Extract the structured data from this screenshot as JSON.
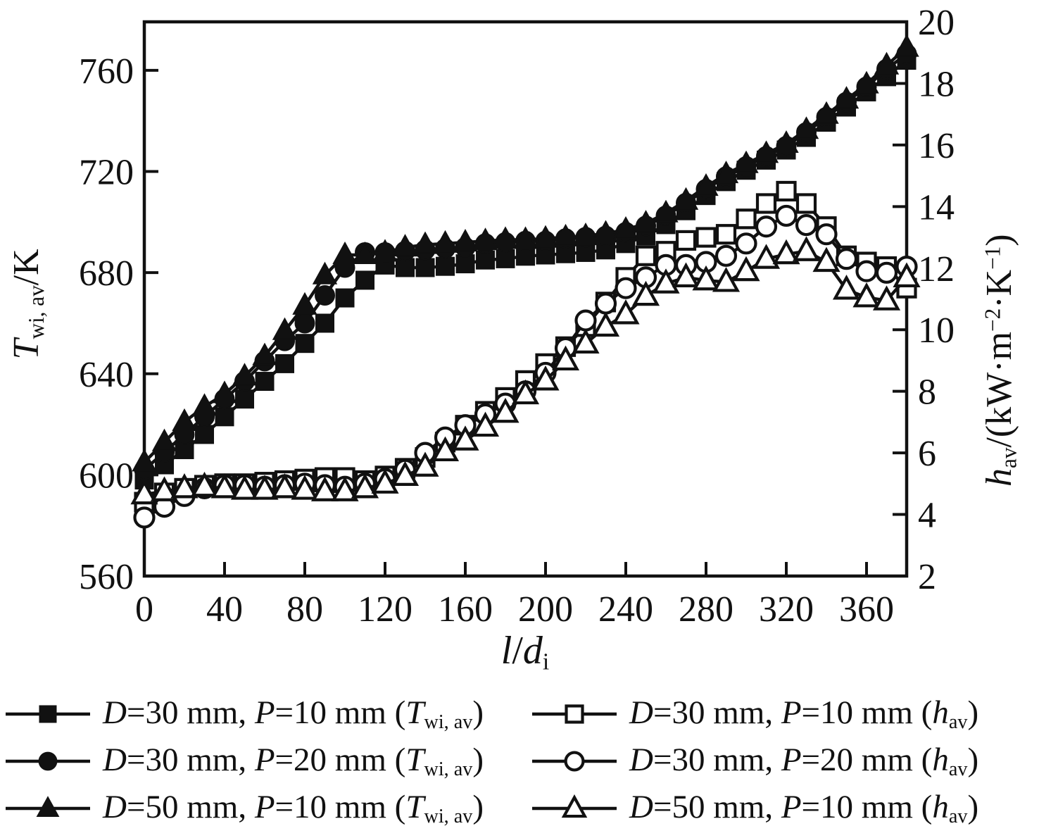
{
  "figure": {
    "background": "#ffffff",
    "foreground": "#111111"
  },
  "chart_data": {
    "type": "line",
    "title": "",
    "grid": "off",
    "legend_position": "bottom-two-columns",
    "x_axis": {
      "label_parts": [
        {
          "t": "l",
          "i": 1
        },
        {
          "t": "/"
        },
        {
          "t": "d",
          "i": 1
        },
        {
          "t": "i",
          "sub": 1
        }
      ],
      "ticks": [
        0,
        40,
        80,
        120,
        160,
        200,
        240,
        280,
        320,
        360
      ],
      "range": [
        0,
        380
      ]
    },
    "left_axis": {
      "label_parts": [
        {
          "t": "T",
          "i": 1
        },
        {
          "t": "wi, av",
          "sub": 1
        },
        {
          "t": "/K"
        }
      ],
      "ticks": [
        560,
        600,
        640,
        680,
        720,
        760
      ],
      "range": [
        560,
        779.2
      ]
    },
    "right_axis": {
      "label_parts": [
        {
          "t": "h",
          "i": 1
        },
        {
          "t": "av",
          "sub": 1
        },
        {
          "t": "/(kW·m"
        },
        {
          "t": "−2",
          "sup": 1
        },
        {
          "t": "·K"
        },
        {
          "t": "−1",
          "sup": 1
        },
        {
          "t": ")"
        }
      ],
      "ticks": [
        2,
        4,
        6,
        8,
        10,
        12,
        14,
        16,
        18,
        20
      ],
      "range": [
        2,
        20
      ]
    },
    "x": [
      0,
      10,
      20,
      30,
      40,
      50,
      60,
      70,
      80,
      90,
      100,
      110,
      120,
      130,
      140,
      150,
      160,
      170,
      180,
      190,
      200,
      210,
      220,
      230,
      240,
      250,
      260,
      270,
      280,
      290,
      300,
      310,
      320,
      330,
      340,
      350,
      360,
      370,
      380
    ],
    "series": [
      {
        "id": "T-D30-P10",
        "axis": "left",
        "marker": "square",
        "fill": "filled",
        "legend_parts": [
          {
            "t": "D",
            "i": 1
          },
          {
            "t": "=30 mm, "
          },
          {
            "t": "P",
            "i": 1
          },
          {
            "t": "=10 mm ("
          },
          {
            "t": "T",
            "i": 1
          },
          {
            "t": "wi, av",
            "sub": 1
          },
          {
            "t": ")"
          }
        ],
        "values": [
          598,
          604,
          610,
          616,
          623,
          630,
          637,
          644,
          652,
          660,
          670,
          677,
          683,
          682,
          682,
          682.5,
          683.5,
          685,
          685.5,
          686.5,
          687,
          687.5,
          688,
          689,
          691.5,
          694.5,
          699,
          704.5,
          710.5,
          716,
          720.5,
          724.5,
          728.5,
          733.5,
          739.5,
          745.5,
          751.5,
          757.5,
          764
        ]
      },
      {
        "id": "T-D30-P20",
        "axis": "left",
        "marker": "circle",
        "fill": "filled",
        "legend_parts": [
          {
            "t": "D",
            "i": 1
          },
          {
            "t": "=30 mm, "
          },
          {
            "t": "P",
            "i": 1
          },
          {
            "t": "=20 mm ("
          },
          {
            "t": "T",
            "i": 1
          },
          {
            "t": "wi, av",
            "sub": 1
          },
          {
            "t": ")"
          }
        ],
        "values": [
          602,
          609,
          616,
          623,
          630,
          637,
          645,
          653,
          660,
          671,
          682,
          688,
          688,
          688.5,
          689,
          689.5,
          690,
          691.5,
          692,
          692.5,
          692.5,
          693.5,
          694,
          694.5,
          696,
          698.5,
          702.5,
          707.5,
          713,
          718,
          722,
          726,
          730,
          735.5,
          741.5,
          747.5,
          753.5,
          760.5,
          766.5
        ]
      },
      {
        "id": "T-D50-P10",
        "axis": "left",
        "marker": "triangle",
        "fill": "filled",
        "legend_parts": [
          {
            "t": "D",
            "i": 1
          },
          {
            "t": "=50 mm, "
          },
          {
            "t": "P",
            "i": 1
          },
          {
            "t": "=10 mm ("
          },
          {
            "t": "T",
            "i": 1
          },
          {
            "t": "wi, av",
            "sub": 1
          },
          {
            "t": ")"
          }
        ],
        "values": [
          605,
          613,
          621,
          627,
          632,
          639,
          647,
          657,
          667,
          679,
          687,
          687,
          688,
          690,
          691,
          691.5,
          692,
          692.5,
          693,
          693,
          693.5,
          694,
          694.5,
          695.5,
          697,
          699.5,
          703.5,
          708.5,
          714,
          719,
          723,
          727,
          731,
          736.5,
          742.5,
          748.5,
          754.5,
          762,
          769
        ]
      },
      {
        "id": "h-D30-P10",
        "axis": "right",
        "marker": "square",
        "fill": "open",
        "legend_parts": [
          {
            "t": "D",
            "i": 1
          },
          {
            "t": "=30 mm, "
          },
          {
            "t": "P",
            "i": 1
          },
          {
            "t": "=10 mm ("
          },
          {
            "t": "h",
            "i": 1
          },
          {
            "t": "av",
            "sub": 1
          },
          {
            "t": ")"
          }
        ],
        "values": [
          4.4,
          4.7,
          4.85,
          4.95,
          5.0,
          5.0,
          5.05,
          5.1,
          5.15,
          5.2,
          5.2,
          5.1,
          5.25,
          5.5,
          5.85,
          6.35,
          6.9,
          7.35,
          7.8,
          8.35,
          8.9,
          9.45,
          10.1,
          10.9,
          11.7,
          12.4,
          12.55,
          12.9,
          13.0,
          13.1,
          13.6,
          14.1,
          14.5,
          14.1,
          13.35,
          12.4,
          12.2,
          12.05,
          11.35
        ]
      },
      {
        "id": "h-D30-P20",
        "axis": "right",
        "marker": "circle",
        "fill": "open",
        "legend_parts": [
          {
            "t": "D",
            "i": 1
          },
          {
            "t": "=30 mm, "
          },
          {
            "t": "P",
            "i": 1
          },
          {
            "t": "=20 mm ("
          },
          {
            "t": "h",
            "i": 1
          },
          {
            "t": "av",
            "sub": 1
          },
          {
            "t": ")"
          }
        ],
        "values": [
          3.9,
          4.25,
          4.6,
          4.85,
          4.95,
          4.95,
          4.9,
          4.95,
          5.0,
          4.95,
          4.9,
          5.0,
          5.15,
          5.45,
          6.0,
          6.5,
          6.9,
          7.25,
          7.6,
          8.0,
          8.6,
          9.4,
          10.3,
          10.85,
          11.35,
          11.7,
          12.1,
          12.1,
          12.2,
          12.4,
          12.8,
          13.35,
          13.7,
          13.4,
          13.1,
          12.3,
          11.9,
          11.85,
          12.05
        ]
      },
      {
        "id": "h-D50-P10",
        "axis": "right",
        "marker": "triangle",
        "fill": "open",
        "legend_parts": [
          {
            "t": "D",
            "i": 1
          },
          {
            "t": "=50 mm, "
          },
          {
            "t": "P",
            "i": 1
          },
          {
            "t": "=10 mm ("
          },
          {
            "t": "h",
            "i": 1
          },
          {
            "t": "av",
            "sub": 1
          },
          {
            "t": ")"
          }
        ],
        "values": [
          4.65,
          4.75,
          4.85,
          4.9,
          4.85,
          4.8,
          4.8,
          4.85,
          4.8,
          4.75,
          4.75,
          4.85,
          5.0,
          5.25,
          5.55,
          6.05,
          6.4,
          6.85,
          7.3,
          7.9,
          8.35,
          9.0,
          9.55,
          10.1,
          10.5,
          11.1,
          11.5,
          11.7,
          11.6,
          11.55,
          11.9,
          12.3,
          12.45,
          12.55,
          12.2,
          11.3,
          11.05,
          10.95,
          11.7
        ]
      }
    ]
  }
}
